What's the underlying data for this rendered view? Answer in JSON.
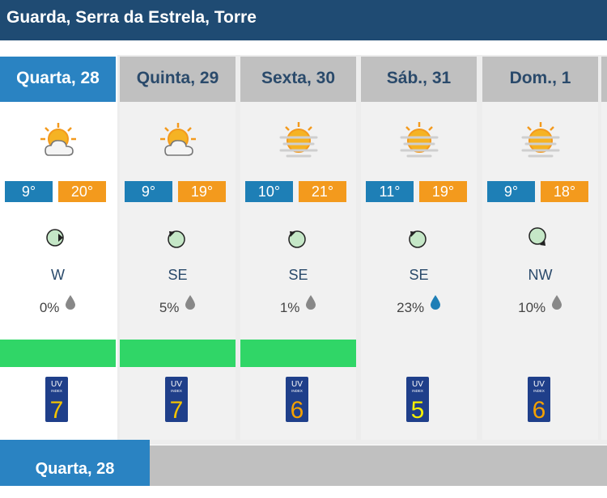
{
  "header": {
    "title": "Guarda, Serra da Estrela, Torre"
  },
  "days": [
    {
      "label": "Quarta, 28",
      "min": "9°",
      "max": "20°",
      "icon": "partly-cloudy-icon",
      "wind_dir": "W",
      "rain": "0%",
      "rain_icon": "gray-drop-icon",
      "green_bar": true,
      "uv": "7",
      "uv_color": "#f3c300"
    },
    {
      "label": "Quinta, 29",
      "min": "9°",
      "max": "19°",
      "icon": "partly-cloudy-icon",
      "wind_dir": "SE",
      "rain": "5%",
      "rain_icon": "gray-drop-icon",
      "green_bar": true,
      "uv": "7",
      "uv_color": "#f3c300"
    },
    {
      "label": "Sexta, 30",
      "min": "10°",
      "max": "21°",
      "icon": "hazy-sun-icon",
      "wind_dir": "SE",
      "rain": "1%",
      "rain_icon": "gray-drop-icon",
      "green_bar": true,
      "uv": "6",
      "uv_color": "#f3a000"
    },
    {
      "label": "Sáb., 31",
      "min": "11°",
      "max": "19°",
      "icon": "hazy-sun-icon",
      "wind_dir": "SE",
      "rain": "23%",
      "rain_icon": "blue-drop-icon",
      "green_bar": false,
      "uv": "5",
      "uv_color": "#f5f000"
    },
    {
      "label": "Dom., 1",
      "min": "9°",
      "max": "18°",
      "icon": "hazy-sun-icon",
      "wind_dir": "NW",
      "rain": "10%",
      "rain_icon": "gray-drop-icon",
      "green_bar": false,
      "uv": "6",
      "uv_color": "#f3a000"
    }
  ],
  "bottom": {
    "label": "Quarta, 28"
  },
  "colors": {
    "header": "#1f4b73",
    "active_tab": "#2a83c2",
    "min_temp": "#1e7fb6",
    "max_temp": "#f39a1d",
    "green_bar": "#30d667"
  }
}
